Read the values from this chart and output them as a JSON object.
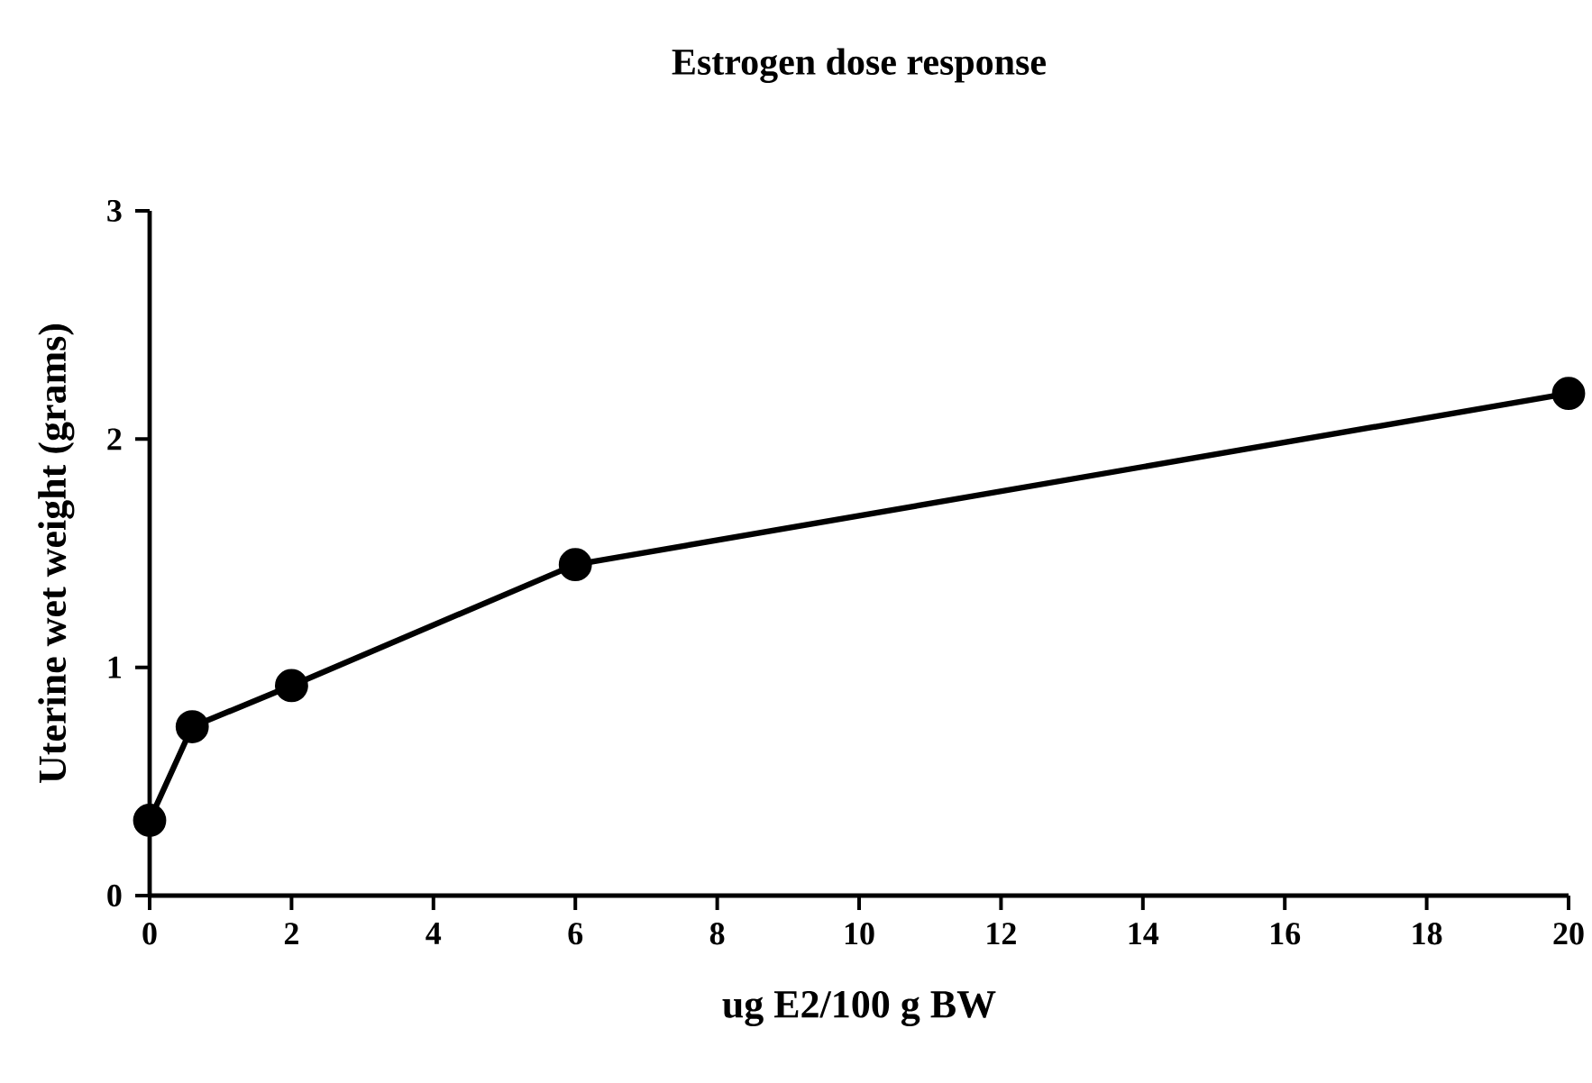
{
  "chart_data": {
    "type": "line",
    "title": "Estrogen dose response",
    "xlabel": "ug E2/100 g BW",
    "ylabel": "Uterine wet weight (grams)",
    "x": [
      0,
      0.6,
      2,
      6,
      20
    ],
    "values": [
      0.33,
      0.74,
      0.92,
      1.45,
      2.2
    ],
    "color": "#000000",
    "marker": "circle",
    "line_style": "solid",
    "xlim": [
      0,
      20
    ],
    "xticks": [
      0,
      2,
      4,
      6,
      8,
      10,
      12,
      14,
      16,
      18,
      20
    ],
    "ylim": [
      0,
      3
    ],
    "yticks": [
      0,
      1,
      2,
      3
    ],
    "grid": false
  }
}
